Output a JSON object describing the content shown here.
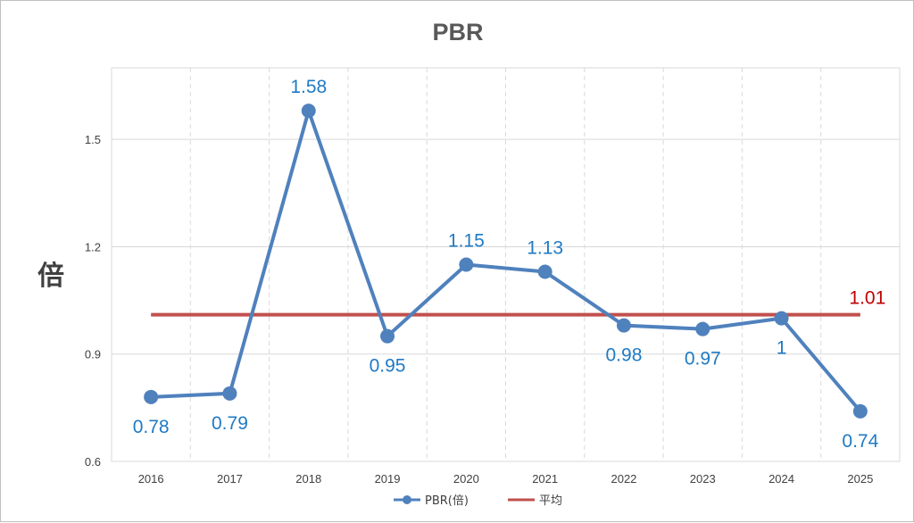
{
  "chart_data": {
    "type": "line",
    "title": "PBR",
    "ylabel": "倍",
    "xlabel": "",
    "categories": [
      "2016",
      "2017",
      "2018",
      "2019",
      "2020",
      "2021",
      "2022",
      "2023",
      "2024",
      "2025"
    ],
    "series": [
      {
        "name": "PBR(倍)",
        "color": "#4f81bd",
        "values": [
          0.78,
          0.79,
          1.58,
          0.95,
          1.15,
          1.13,
          0.98,
          0.97,
          1,
          0.74
        ],
        "data_labels": [
          "0.78",
          "0.79",
          "1.58",
          "0.95",
          "1.15",
          "1.13",
          "0.98",
          "0.97",
          "1",
          "0.74"
        ],
        "label_positions": [
          "below",
          "below",
          "above",
          "below",
          "above",
          "above",
          "below",
          "below",
          "below",
          "below"
        ],
        "label_color": "#1f7ac4"
      },
      {
        "name": "平均",
        "color": "#c0504d",
        "value": 1.01,
        "data_label": "1.01",
        "label_color": "#c00000"
      }
    ],
    "ylim": [
      0.6,
      1.7
    ],
    "yticks": [
      0.6,
      0.9,
      1.2,
      1.5
    ],
    "ytick_labels": [
      "0.6",
      "0.9",
      "1.2",
      "1.5"
    ],
    "grid": {
      "horizontal": true,
      "vertical": "dashed"
    },
    "legend": {
      "position": "bottom-center",
      "entries": [
        "PBR(倍)",
        "平均"
      ]
    }
  }
}
